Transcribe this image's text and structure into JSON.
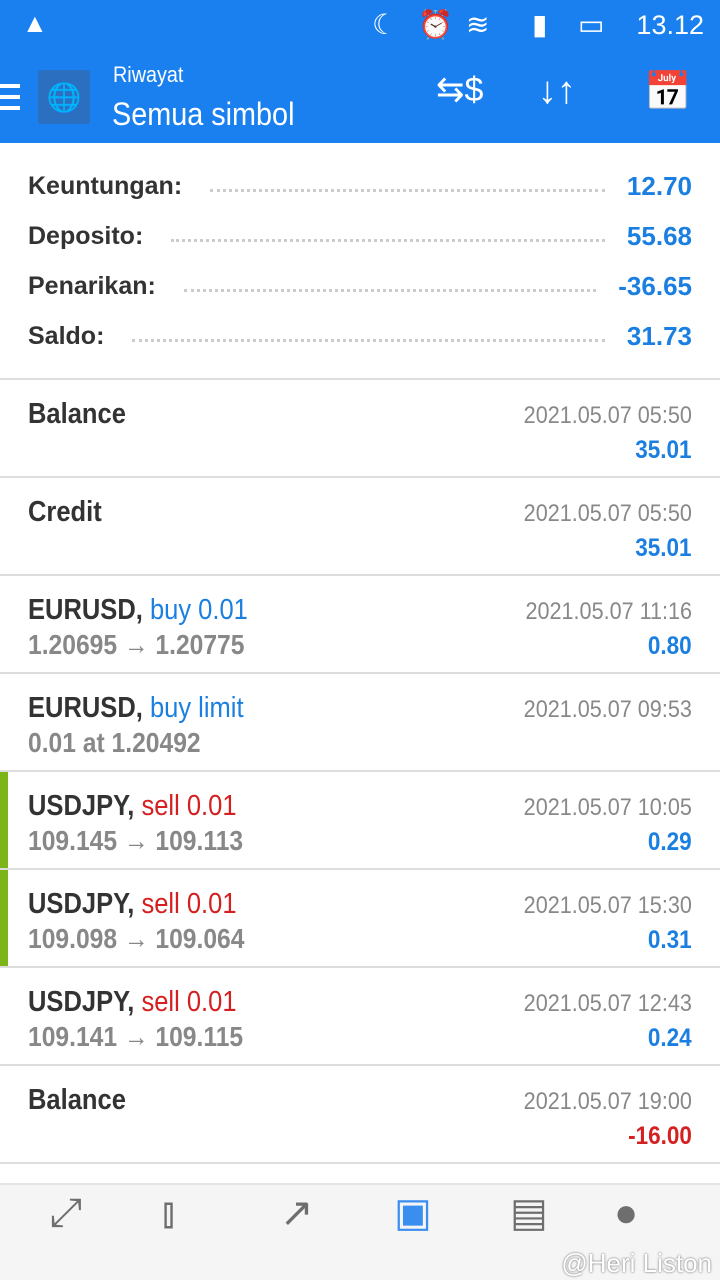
{
  "status_bar": {
    "time": "13.12"
  },
  "app_bar": {
    "subtitle": "Riwayat",
    "title": "Semua simbol"
  },
  "summary": [
    {
      "label": "Keuntungan:",
      "value": "12.70"
    },
    {
      "label": "Deposito:",
      "value": "55.68"
    },
    {
      "label": "Penarikan:",
      "value": "-36.65"
    },
    {
      "label": "Saldo:",
      "value": "31.73"
    }
  ],
  "entries": [
    {
      "title": "Balance",
      "action": "",
      "detail": "",
      "date": "2021.05.07 05:50",
      "amount": "35.01"
    },
    {
      "title": "Credit",
      "action": "",
      "detail": "",
      "date": "2021.05.07 05:50",
      "amount": "35.01"
    },
    {
      "title": "EURUSD,",
      "action": "buy 0.01",
      "detail": "1.20695 → 1.20775",
      "date": "2021.05.07 11:16",
      "amount": "0.80"
    },
    {
      "title": "EURUSD,",
      "action": "buy limit",
      "detail": "0.01 at 1.20492",
      "date": "2021.05.07 09:53",
      "amount": ""
    },
    {
      "title": "USDJPY,",
      "action": "sell 0.01",
      "detail": "109.145 → 109.113",
      "date": "2021.05.07 10:05",
      "amount": "0.29"
    },
    {
      "title": "USDJPY,",
      "action": "sell 0.01",
      "detail": "109.098 → 109.064",
      "date": "2021.05.07 15:30",
      "amount": "0.31"
    },
    {
      "title": "USDJPY,",
      "action": "sell 0.01",
      "detail": "109.141 → 109.115",
      "date": "2021.05.07 12:43",
      "amount": "0.24"
    },
    {
      "title": "Balance",
      "action": "",
      "detail": "",
      "date": "2021.05.07 19:00",
      "amount": "-16.00"
    }
  ],
  "watermark": "@Heri Liston",
  "colors": {
    "accent": "#1a80f0",
    "buy": "#1a7fe0",
    "sell": "#d42020",
    "marker": "#7cb518"
  }
}
